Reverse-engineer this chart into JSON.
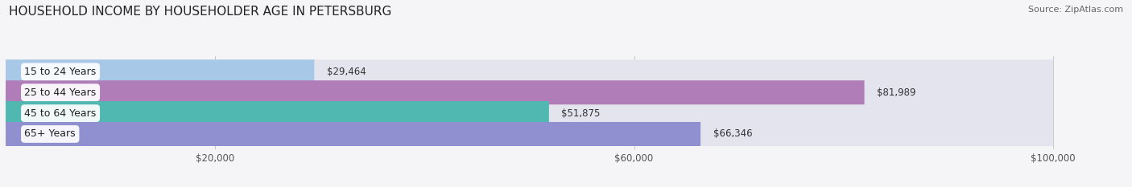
{
  "title": "HOUSEHOLD INCOME BY HOUSEHOLDER AGE IN PETERSBURG",
  "source": "Source: ZipAtlas.com",
  "categories": [
    "15 to 24 Years",
    "25 to 44 Years",
    "45 to 64 Years",
    "65+ Years"
  ],
  "values": [
    29464,
    81989,
    51875,
    66346
  ],
  "labels": [
    "$29,464",
    "$81,989",
    "$51,875",
    "$66,346"
  ],
  "bar_colors": [
    "#a8c8e8",
    "#b07db8",
    "#50b8b0",
    "#9090d0"
  ],
  "bar_bg_color": "#e4e4ee",
  "xmax": 100000,
  "xticks": [
    20000,
    60000,
    100000
  ],
  "xticklabels": [
    "$20,000",
    "$60,000",
    "$100,000"
  ],
  "title_fontsize": 11,
  "source_fontsize": 8,
  "label_fontsize": 8.5,
  "tick_fontsize": 8.5,
  "cat_fontsize": 9,
  "background_color": "#f5f5f8",
  "bar_height": 0.58
}
